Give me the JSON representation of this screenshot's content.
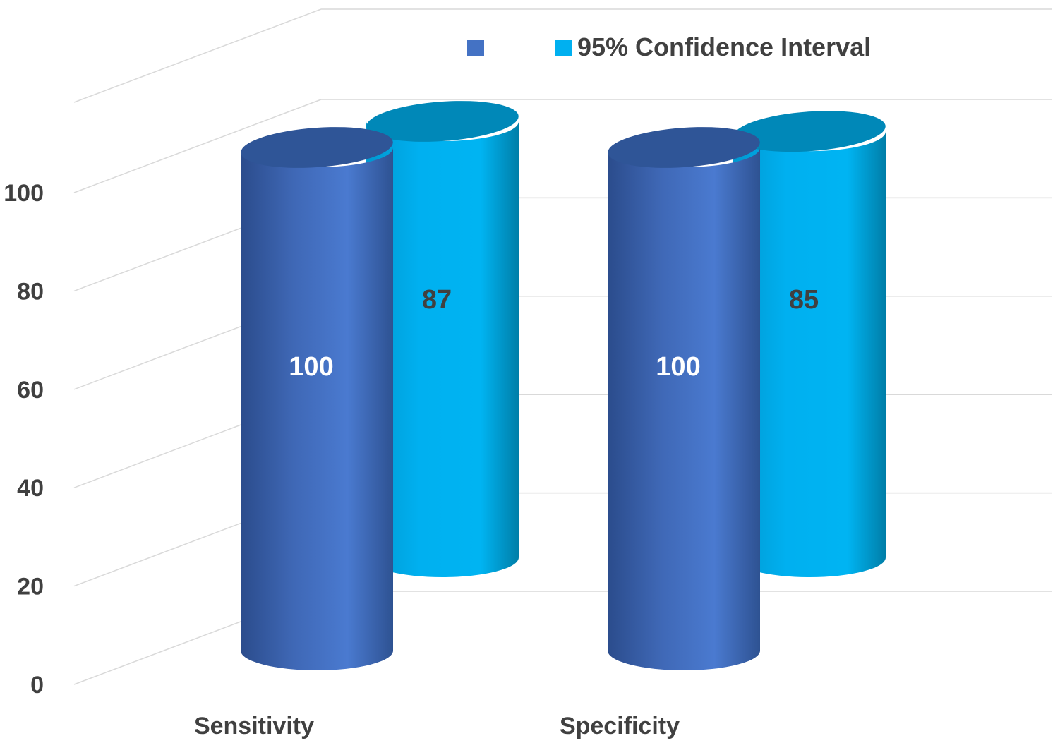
{
  "chart_data": {
    "type": "bar",
    "style": "3d-cylinder",
    "categories": [
      "Sensitivity",
      "Specificity"
    ],
    "series": [
      {
        "name": "",
        "values": [
          100,
          100
        ],
        "color": "#4472C4",
        "top_color": "#2F5597",
        "label_color": "#FFFFFF"
      },
      {
        "name": "95% Confidence Interval",
        "values": [
          87,
          85
        ],
        "color": "#00B0F0",
        "top_color": "#0088B8",
        "label_color": "#404040"
      }
    ],
    "ylim": [
      0,
      100
    ],
    "yticks": [
      0,
      20,
      40,
      60,
      80,
      100
    ],
    "grid": true,
    "legend": "top-center"
  }
}
